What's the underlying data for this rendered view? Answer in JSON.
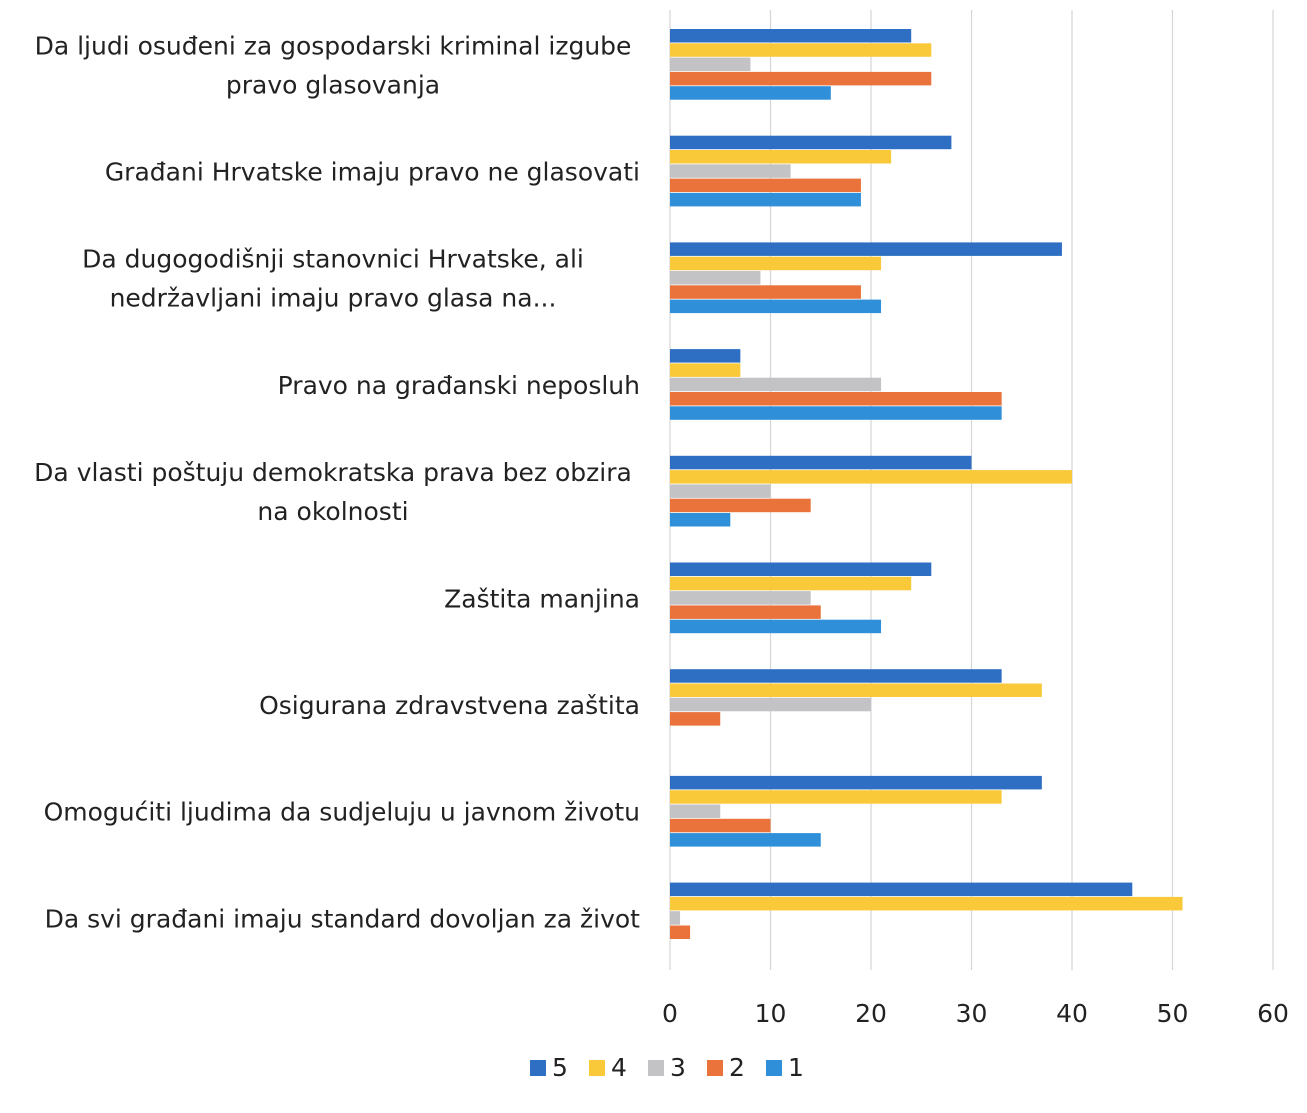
{
  "chart_data": {
    "type": "bar",
    "orientation": "horizontal",
    "categories": [
      [
        "Da ljudi osuđeni za gospodarski kriminal izgube",
        "pravo glasovanja"
      ],
      [
        "Građani Hrvatske imaju pravo ne glasovati"
      ],
      [
        "Da dugogodišnji stanovnici Hrvatske, ali",
        "nedržavljani imaju pravo glasa na..."
      ],
      [
        "Pravo na građanski neposluh"
      ],
      [
        "Da vlasti poštuju demokratska prava bez obzira",
        "na okolnosti"
      ],
      [
        "Zaštita manjina"
      ],
      [
        "Osigurana zdravstvena zaštita"
      ],
      [
        "Omogućiti ljudima da sudjeluju u javnom životu"
      ],
      [
        "Da svi građani imaju standard dovoljan za život"
      ]
    ],
    "series": [
      {
        "name": "5",
        "color": "#2e6fc4",
        "values": [
          24,
          28,
          39,
          7,
          30,
          26,
          33,
          37,
          46
        ]
      },
      {
        "name": "4",
        "color": "#f9c93a",
        "values": [
          26,
          22,
          21,
          7,
          40,
          24,
          37,
          33,
          51
        ]
      },
      {
        "name": "3",
        "color": "#c3c3c6",
        "values": [
          8,
          12,
          9,
          21,
          10,
          14,
          20,
          5,
          1
        ]
      },
      {
        "name": "2",
        "color": "#ea733c",
        "values": [
          26,
          19,
          19,
          33,
          14,
          15,
          5,
          10,
          2
        ]
      },
      {
        "name": "1",
        "color": "#2f8fd8",
        "values": [
          16,
          19,
          21,
          33,
          6,
          21,
          0,
          15,
          0
        ]
      }
    ],
    "xlim": [
      0,
      60
    ],
    "xticks": [
      "0",
      "10",
      "20",
      "30",
      "40",
      "50",
      "60"
    ],
    "grid": "vertical",
    "legend": "bottom-center",
    "title": "",
    "xlabel": "",
    "ylabel": ""
  }
}
